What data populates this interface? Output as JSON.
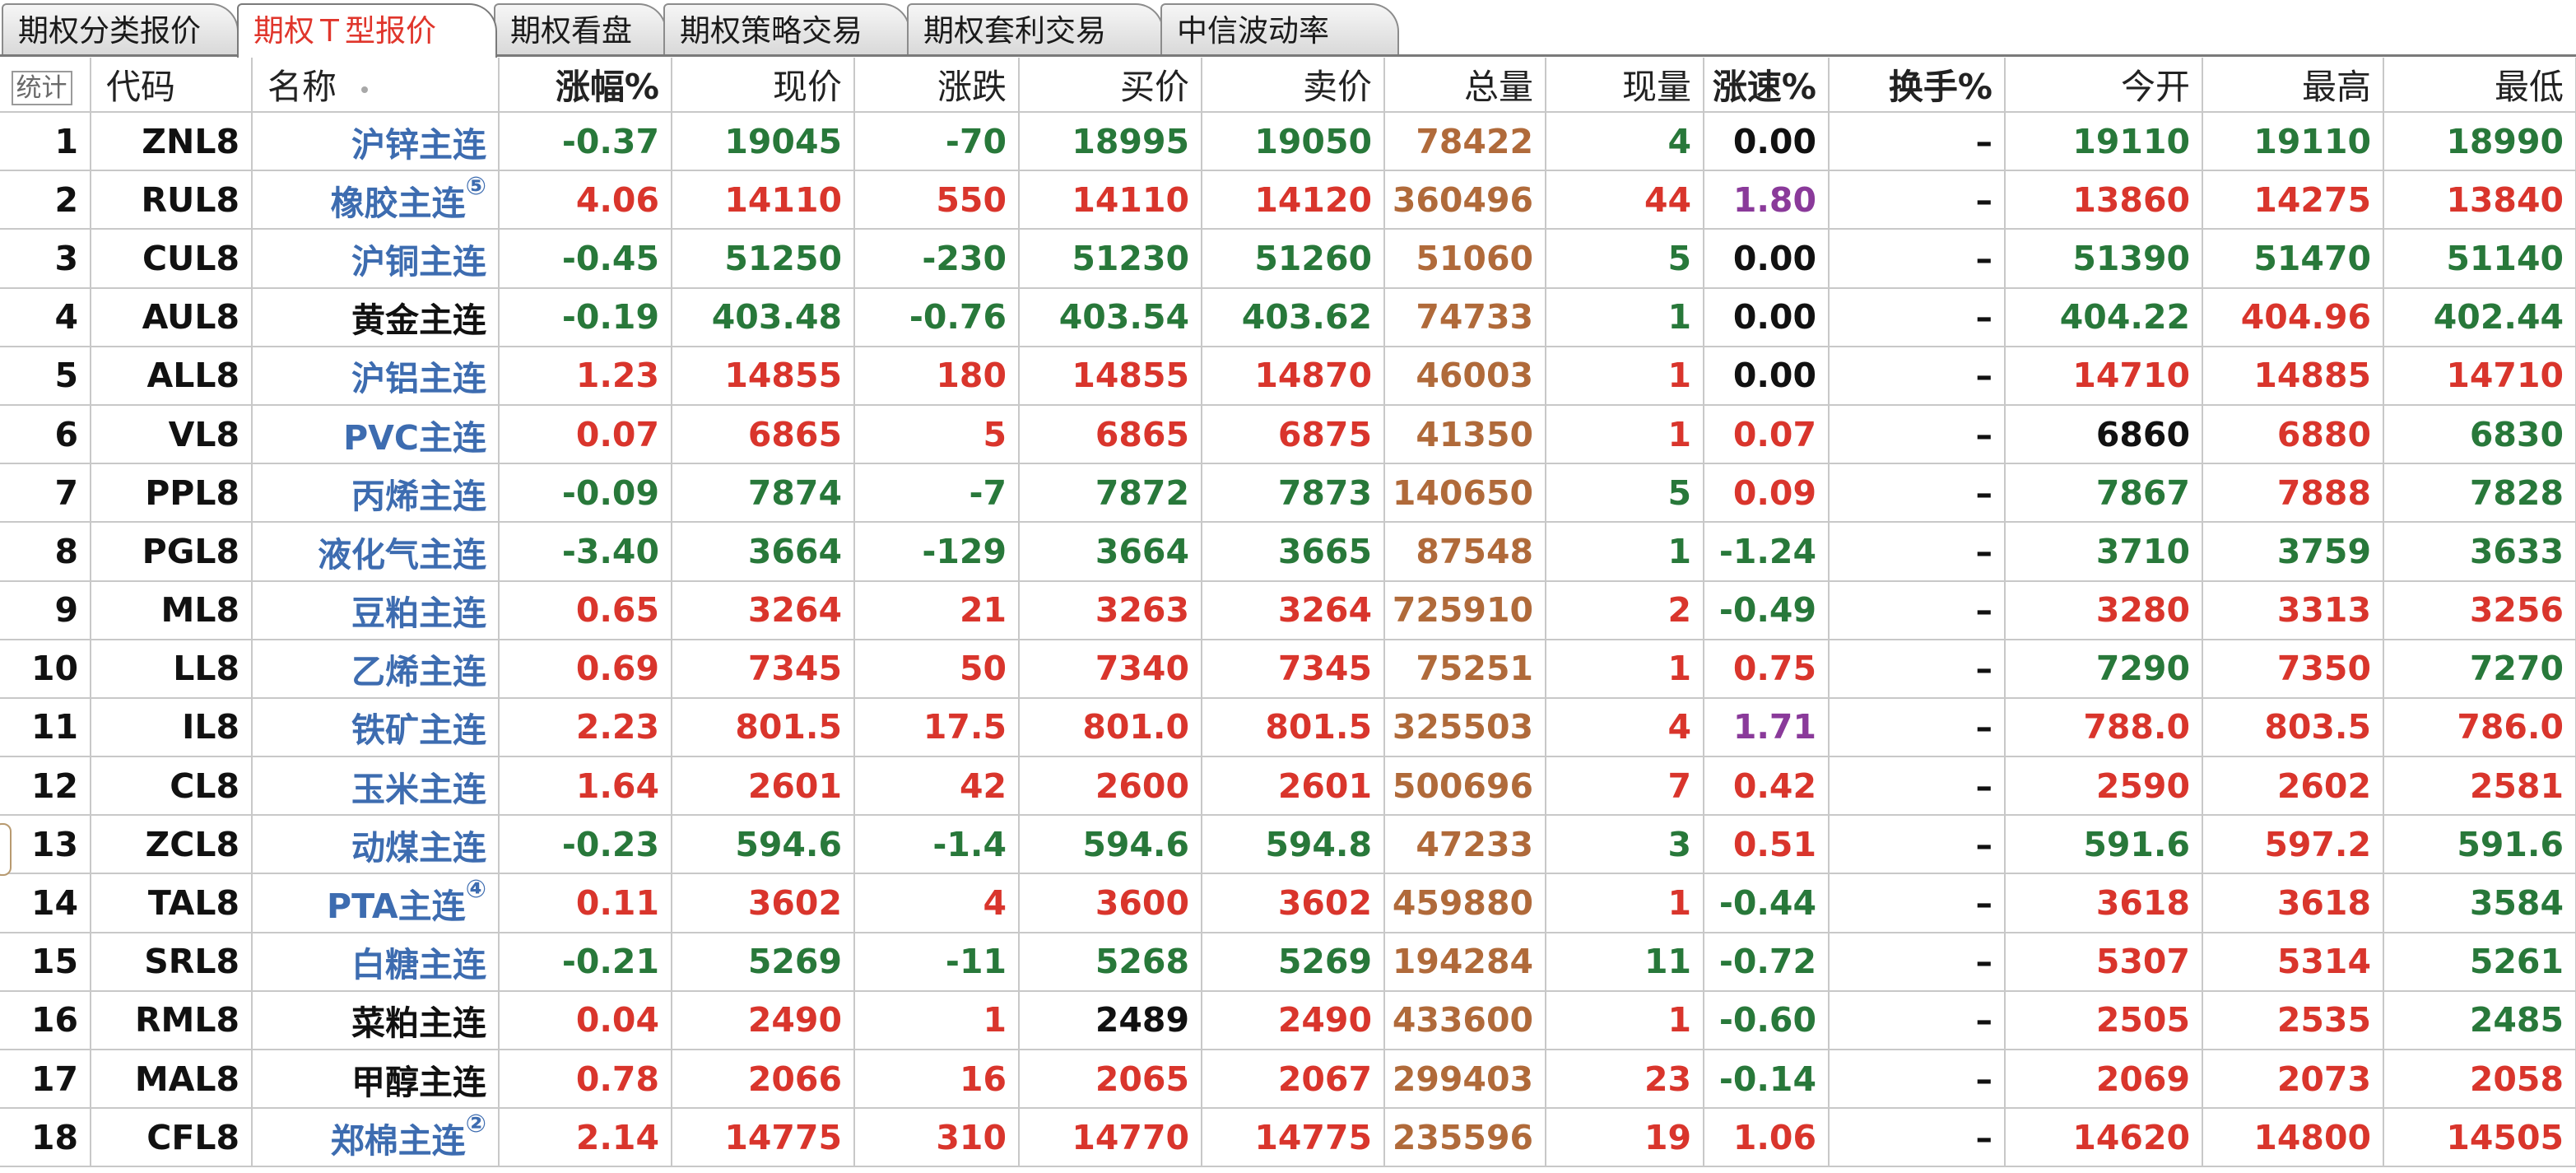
{
  "tabs": [
    {
      "label": "期权分类报价"
    },
    {
      "label": "期权Ｔ型报价"
    },
    {
      "label": "期权看盘"
    },
    {
      "label": "期权策略交易"
    },
    {
      "label": "期权套利交易"
    },
    {
      "label": "中信波动率"
    }
  ],
  "active_tab": 1,
  "table": {
    "stat_button": "统计",
    "headers": [
      "代码",
      "名称",
      "涨幅%",
      "现价",
      "涨跌",
      "买价",
      "卖价",
      "总量",
      "现量",
      "涨速%",
      "换手%",
      "今开",
      "最高",
      "最低"
    ],
    "rows": [
      {
        "idx": "1",
        "code": "ZNL8",
        "name": "沪锌主连",
        "link": true,
        "mark": "",
        "chg_pct": "-0.37",
        "price": "19045",
        "chg": "-70",
        "bid": "18995",
        "ask": "19050",
        "volume": "78422",
        "cur_vol": "4",
        "speed": "0.00",
        "turnover": "–",
        "open": "19110",
        "high": "19110",
        "low": "18990"
      },
      {
        "idx": "2",
        "code": "RUL8",
        "name": "橡胶主连",
        "link": true,
        "mark": "⑤",
        "chg_pct": "4.06",
        "price": "14110",
        "chg": "550",
        "bid": "14110",
        "ask": "14120",
        "volume": "360496",
        "cur_vol": "44",
        "speed": "1.80",
        "turnover": "–",
        "open": "13860",
        "high": "14275",
        "low": "13840"
      },
      {
        "idx": "3",
        "code": "CUL8",
        "name": "沪铜主连",
        "link": true,
        "mark": "",
        "chg_pct": "-0.45",
        "price": "51250",
        "chg": "-230",
        "bid": "51230",
        "ask": "51260",
        "volume": "51060",
        "cur_vol": "5",
        "speed": "0.00",
        "turnover": "–",
        "open": "51390",
        "high": "51470",
        "low": "51140"
      },
      {
        "idx": "4",
        "code": "AUL8",
        "name": "黄金主连",
        "link": false,
        "mark": "",
        "chg_pct": "-0.19",
        "price": "403.48",
        "chg": "-0.76",
        "bid": "403.54",
        "ask": "403.62",
        "volume": "74733",
        "cur_vol": "1",
        "speed": "0.00",
        "turnover": "–",
        "open": "404.22",
        "high": "404.96",
        "low": "402.44"
      },
      {
        "idx": "5",
        "code": "ALL8",
        "name": "沪铝主连",
        "link": true,
        "mark": "",
        "chg_pct": "1.23",
        "price": "14855",
        "chg": "180",
        "bid": "14855",
        "ask": "14870",
        "volume": "46003",
        "cur_vol": "1",
        "speed": "0.00",
        "turnover": "–",
        "open": "14710",
        "high": "14885",
        "low": "14710"
      },
      {
        "idx": "6",
        "code": "VL8",
        "name": "PVC主连",
        "link": true,
        "mark": "",
        "chg_pct": "0.07",
        "price": "6865",
        "chg": "5",
        "bid": "6865",
        "ask": "6875",
        "volume": "41350",
        "cur_vol": "1",
        "speed": "0.07",
        "turnover": "–",
        "open": "6860",
        "high": "6880",
        "low": "6830"
      },
      {
        "idx": "7",
        "code": "PPL8",
        "name": "丙烯主连",
        "link": true,
        "mark": "",
        "chg_pct": "-0.09",
        "price": "7874",
        "chg": "-7",
        "bid": "7872",
        "ask": "7873",
        "volume": "140650",
        "cur_vol": "5",
        "speed": "0.09",
        "turnover": "–",
        "open": "7867",
        "high": "7888",
        "low": "7828"
      },
      {
        "idx": "8",
        "code": "PGL8",
        "name": "液化气主连",
        "link": true,
        "mark": "",
        "chg_pct": "-3.40",
        "price": "3664",
        "chg": "-129",
        "bid": "3664",
        "ask": "3665",
        "volume": "87548",
        "cur_vol": "1",
        "speed": "-1.24",
        "turnover": "–",
        "open": "3710",
        "high": "3759",
        "low": "3633"
      },
      {
        "idx": "9",
        "code": "ML8",
        "name": "豆粕主连",
        "link": true,
        "mark": "",
        "chg_pct": "0.65",
        "price": "3264",
        "chg": "21",
        "bid": "3263",
        "ask": "3264",
        "volume": "725910",
        "cur_vol": "2",
        "speed": "-0.49",
        "turnover": "–",
        "open": "3280",
        "high": "3313",
        "low": "3256"
      },
      {
        "idx": "10",
        "code": "LL8",
        "name": "乙烯主连",
        "link": true,
        "mark": "",
        "chg_pct": "0.69",
        "price": "7345",
        "chg": "50",
        "bid": "7340",
        "ask": "7345",
        "volume": "75251",
        "cur_vol": "1",
        "speed": "0.75",
        "turnover": "–",
        "open": "7290",
        "high": "7350",
        "low": "7270"
      },
      {
        "idx": "11",
        "code": "IL8",
        "name": "铁矿主连",
        "link": true,
        "mark": "",
        "chg_pct": "2.23",
        "price": "801.5",
        "chg": "17.5",
        "bid": "801.0",
        "ask": "801.5",
        "volume": "325503",
        "cur_vol": "4",
        "speed": "1.71",
        "turnover": "–",
        "open": "788.0",
        "high": "803.5",
        "low": "786.0"
      },
      {
        "idx": "12",
        "code": "CL8",
        "name": "玉米主连",
        "link": true,
        "mark": "",
        "chg_pct": "1.64",
        "price": "2601",
        "chg": "42",
        "bid": "2600",
        "ask": "2601",
        "volume": "500696",
        "cur_vol": "7",
        "speed": "0.42",
        "turnover": "–",
        "open": "2590",
        "high": "2602",
        "low": "2581"
      },
      {
        "idx": "13",
        "code": "ZCL8",
        "name": "动煤主连",
        "link": true,
        "mark": "",
        "chg_pct": "-0.23",
        "price": "594.6",
        "chg": "-1.4",
        "bid": "594.6",
        "ask": "594.8",
        "volume": "47233",
        "cur_vol": "3",
        "speed": "0.51",
        "turnover": "–",
        "open": "591.6",
        "high": "597.2",
        "low": "591.6"
      },
      {
        "idx": "14",
        "code": "TAL8",
        "name": "PTA主连",
        "link": true,
        "mark": "④",
        "chg_pct": "0.11",
        "price": "3602",
        "chg": "4",
        "bid": "3600",
        "ask": "3602",
        "volume": "459880",
        "cur_vol": "1",
        "speed": "-0.44",
        "turnover": "–",
        "open": "3618",
        "high": "3618",
        "low": "3584"
      },
      {
        "idx": "15",
        "code": "SRL8",
        "name": "白糖主连",
        "link": true,
        "mark": "",
        "chg_pct": "-0.21",
        "price": "5269",
        "chg": "-11",
        "bid": "5268",
        "ask": "5269",
        "volume": "194284",
        "cur_vol": "11",
        "speed": "-0.72",
        "turnover": "–",
        "open": "5307",
        "high": "5314",
        "low": "5261"
      },
      {
        "idx": "16",
        "code": "RML8",
        "name": "菜粕主连",
        "link": false,
        "mark": "",
        "chg_pct": "0.04",
        "price": "2490",
        "chg": "1",
        "bid": "2489",
        "ask": "2490",
        "volume": "433600",
        "cur_vol": "1",
        "speed": "-0.60",
        "turnover": "–",
        "open": "2505",
        "high": "2535",
        "low": "2485"
      },
      {
        "idx": "17",
        "code": "MAL8",
        "name": "甲醇主连",
        "link": false,
        "mark": "",
        "chg_pct": "0.78",
        "price": "2066",
        "chg": "16",
        "bid": "2065",
        "ask": "2067",
        "volume": "299403",
        "cur_vol": "23",
        "speed": "-0.14",
        "turnover": "–",
        "open": "2069",
        "high": "2073",
        "low": "2058"
      },
      {
        "idx": "18",
        "code": "CFL8",
        "name": "郑棉主连",
        "link": true,
        "mark": "②",
        "chg_pct": "2.14",
        "price": "14775",
        "chg": "310",
        "bid": "14770",
        "ask": "14775",
        "volume": "235596",
        "cur_vol": "19",
        "speed": "1.06",
        "turnover": "–",
        "open": "14620",
        "high": "14800",
        "low": "14505"
      }
    ]
  },
  "colors": {
    "up": "#d9352c",
    "down": "#28783a",
    "flat": "#111111",
    "volume": "#b06a3a",
    "speed_strong": "#8a3a9a",
    "link": "#3d6cb0",
    "active_tab": "#e0352b"
  }
}
